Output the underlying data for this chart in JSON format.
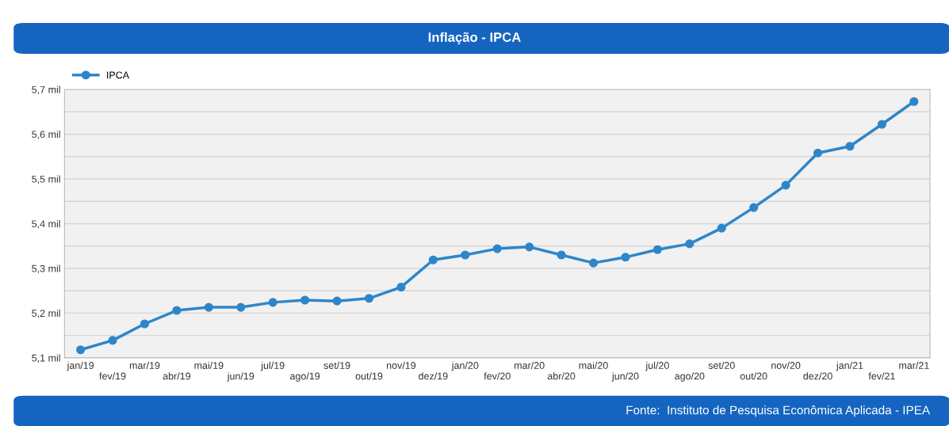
{
  "chart_data": {
    "type": "line",
    "title": "Inflação - IPCA",
    "categories": [
      "jan/19",
      "fev/19",
      "mar/19",
      "abr/19",
      "mai/19",
      "jun/19",
      "jul/19",
      "ago/19",
      "set/19",
      "out/19",
      "nov/19",
      "dez/19",
      "jan/20",
      "fev/20",
      "mar/20",
      "abr/20",
      "mai/20",
      "jun/20",
      "jul/20",
      "ago/20",
      "set/20",
      "out/20",
      "nov/20",
      "dez/20",
      "jan/21",
      "fev/21",
      "mar/21"
    ],
    "series": [
      {
        "name": "IPCA",
        "color": "#2e86c9",
        "values": [
          5.118,
          5.139,
          5.176,
          5.206,
          5.213,
          5.213,
          5.224,
          5.229,
          5.227,
          5.233,
          5.258,
          5.319,
          5.33,
          5.344,
          5.348,
          5.33,
          5.312,
          5.325,
          5.342,
          5.355,
          5.39,
          5.436,
          5.486,
          5.558,
          5.573,
          5.622,
          5.673
        ]
      }
    ],
    "ylim": [
      5.1,
      5.7
    ],
    "yticks": [
      {
        "value": 5.1,
        "label": "5,1 mil"
      },
      {
        "value": 5.15,
        "label": null
      },
      {
        "value": 5.2,
        "label": "5,2 mil"
      },
      {
        "value": 5.25,
        "label": null
      },
      {
        "value": 5.3,
        "label": "5,3 mil"
      },
      {
        "value": 5.35,
        "label": null
      },
      {
        "value": 5.4,
        "label": "5,4 mil"
      },
      {
        "value": 5.45,
        "label": null
      },
      {
        "value": 5.5,
        "label": "5,5 mil"
      },
      {
        "value": 5.55,
        "label": null
      },
      {
        "value": 5.6,
        "label": "5,6 mil"
      },
      {
        "value": 5.65,
        "label": null
      },
      {
        "value": 5.7,
        "label": "5,7 mil"
      }
    ],
    "grid": "y",
    "legend": "top left",
    "marker": "circle",
    "line_style": "solid",
    "annotations": [
      "Fonte:  Instituto de Pesquisa Econômica Aplicada - IPEA"
    ]
  }
}
